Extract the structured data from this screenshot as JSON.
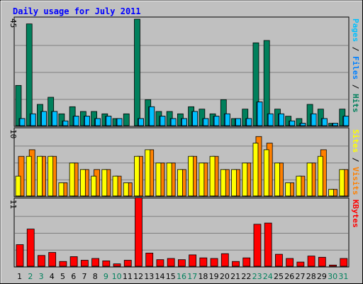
{
  "chart_data": {
    "type": "bar",
    "title": "Daily usage for July 2011",
    "categories": [
      "1",
      "2",
      "3",
      "4",
      "5",
      "6",
      "7",
      "8",
      "9",
      "10",
      "11",
      "12",
      "13",
      "14",
      "15",
      "16",
      "17",
      "18",
      "19",
      "20",
      "21",
      "22",
      "23",
      "24",
      "25",
      "26",
      "27",
      "28",
      "29",
      "30",
      "31"
    ],
    "weekend_days": [
      "2",
      "3",
      "9",
      "10",
      "16",
      "17",
      "23",
      "24",
      "30",
      "31"
    ],
    "panels": [
      {
        "id": "hits-files",
        "max_label": "45",
        "ymax": 45,
        "legend": [
          "Pages",
          "Files",
          "Hits"
        ],
        "series": [
          {
            "name": "Hits",
            "color": "#00805c",
            "values": [
              17,
              43,
              9,
              12,
              5,
              8,
              6,
              6,
              5,
              3,
              5,
              45,
              11,
              6,
              6,
              5,
              8,
              7,
              5,
              11,
              3,
              7,
              35,
              36,
              7,
              4,
              3,
              9,
              7,
              1,
              7
            ]
          },
          {
            "name": "Files",
            "color": "#0080ff",
            "values": [
              3,
              5,
              6,
              6,
              2,
              4,
              4,
              3,
              4,
              3,
              0,
              3,
              8,
              4,
              3,
              3,
              6,
              3,
              4,
              5,
              3,
              3,
              10,
              5,
              5,
              2,
              1,
              5,
              3,
              1,
              4
            ]
          },
          {
            "name": "Pages",
            "color": "#00c0ff",
            "values": [
              3,
              5,
              6,
              6,
              2,
              4,
              4,
              3,
              4,
              3,
              0,
              3,
              8,
              4,
              3,
              3,
              6,
              3,
              4,
              5,
              3,
              3,
              10,
              5,
              5,
              2,
              1,
              5,
              3,
              1,
              4
            ]
          }
        ]
      },
      {
        "id": "visits-sites",
        "max_label": "10",
        "ymax": 10,
        "legend": [
          "Sites",
          "Visits"
        ],
        "series": [
          {
            "name": "Visits",
            "color": "#ff8000",
            "values": [
              6,
              7,
              6,
              6,
              2,
              5,
              4,
              4,
              4,
              3,
              2,
              6,
              7,
              5,
              5,
              4,
              6,
              5,
              6,
              4,
              4,
              5,
              9,
              8,
              5,
              2,
              3,
              5,
              7,
              1,
              4
            ]
          },
          {
            "name": "Sites",
            "color": "#ffff00",
            "values": [
              3,
              6,
              6,
              6,
              2,
              5,
              4,
              3,
              4,
              3,
              2,
              6,
              7,
              5,
              5,
              4,
              6,
              5,
              6,
              4,
              4,
              5,
              8,
              7,
              5,
              2,
              3,
              5,
              6,
              1,
              4
            ]
          }
        ]
      },
      {
        "id": "kbytes",
        "max_label": "11",
        "ymax": 11,
        "legend": [
          "KBytes"
        ],
        "series": [
          {
            "name": "KBytes",
            "color": "#ff0000",
            "values": [
              3.6,
              6.2,
              1.8,
              2.3,
              0.8,
              1.6,
              1.0,
              1.3,
              0.9,
              0.4,
              1.0,
              11.4,
              2.2,
              1.1,
              1.3,
              1.1,
              1.9,
              1.4,
              1.3,
              2.1,
              0.8,
              1.4,
              7.0,
              7.2,
              2.0,
              1.3,
              0.7,
              1.7,
              1.5,
              0.2,
              1.3
            ]
          }
        ]
      }
    ]
  },
  "colors": {
    "background": "#c0c0c0",
    "title": "#0000ff",
    "weekday_label": "#000000",
    "weekend_label": "#00805c",
    "kbytes_legend": "#ff0000"
  }
}
